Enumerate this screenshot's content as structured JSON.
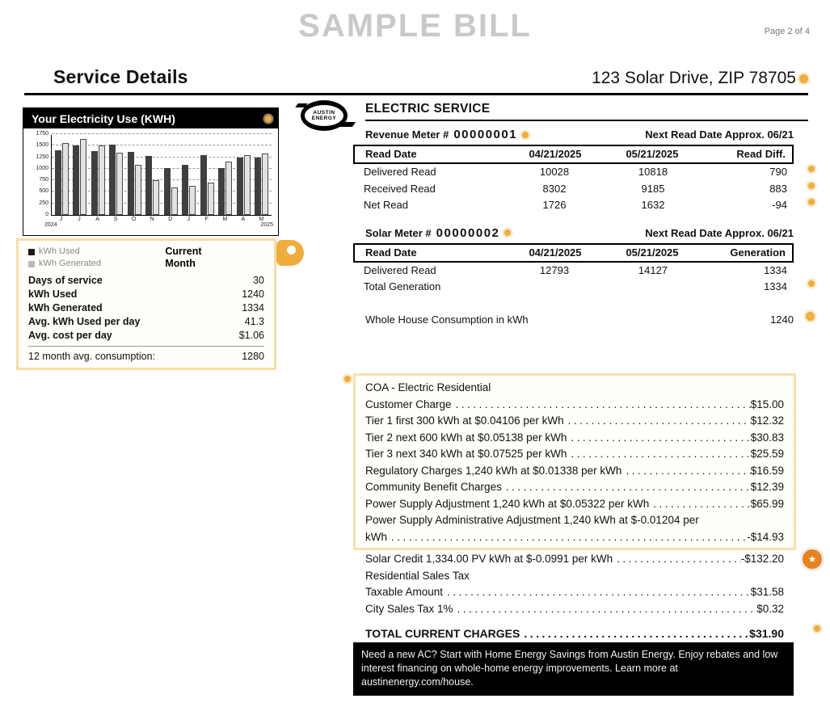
{
  "page": {
    "watermark": "SAMPLE BILL",
    "page_indicator": "Page 2 of 4"
  },
  "header": {
    "title": "Service Details",
    "address": "123 Solar Drive, ZIP 78705"
  },
  "logo": {
    "line1": "AUSTIN",
    "line2": "ENERGY"
  },
  "chart_data": {
    "type": "bar",
    "title": "Your Electricity Use (KWH)",
    "categories": [
      "J",
      "J",
      "A",
      "S",
      "O",
      "N",
      "D",
      "J",
      "F",
      "M",
      "A",
      "M"
    ],
    "series": [
      {
        "name": "kWh Used",
        "color": "#3f3f3f",
        "values": [
          1400,
          1500,
          1380,
          1520,
          1360,
          1270,
          1020,
          1090,
          1290,
          1010,
          1250,
          1240
        ]
      },
      {
        "name": "kWh Generated",
        "color": "#e2e2e2",
        "values": [
          1560,
          1650,
          1500,
          1340,
          1090,
          760,
          590,
          630,
          700,
          1160,
          1290,
          1334
        ]
      }
    ],
    "ylim": [
      0,
      1750
    ],
    "yticks": [
      0,
      250,
      500,
      750,
      1000,
      1250,
      1500,
      1750
    ],
    "x_start_year": "2024",
    "x_end_year": "2025",
    "grid": "dashed horizontal",
    "legend_position": "below-left"
  },
  "usage_summary": {
    "legend": [
      {
        "label": "kWh Used",
        "color": "#1a1a1a"
      },
      {
        "label": "kWh Generated",
        "color": "#b9b9b9"
      }
    ],
    "column_header_line1": "Current",
    "column_header_line2": "Month",
    "rows": [
      {
        "label": "Days of service",
        "value": "30"
      },
      {
        "label": "kWh Used",
        "value": "1240"
      },
      {
        "label": "kWh Generated",
        "value": "1334"
      },
      {
        "label": "Avg. kWh Used per day",
        "value": "41.3"
      },
      {
        "label": "Avg. cost per day",
        "value": "$1.06"
      }
    ],
    "footer": {
      "label": "12 month avg. consumption:",
      "value": "1280"
    }
  },
  "electric_service": {
    "title": "ELECTRIC SERVICE",
    "meters": [
      {
        "name_label": "Revenue Meter #",
        "number": "00000001",
        "next_read": "Next Read Date Approx. 06/21",
        "header": [
          "Read Date",
          "04/21/2025",
          "05/21/2025",
          "Read Diff."
        ],
        "rows": [
          {
            "cells": [
              "Delivered Read",
              "10028",
              "10818",
              "790"
            ],
            "marker": true
          },
          {
            "cells": [
              "Received Read",
              "8302",
              "9185",
              "883"
            ],
            "marker": true
          },
          {
            "cells": [
              "Net Read",
              "1726",
              "1632",
              "-94"
            ],
            "marker": true
          }
        ]
      },
      {
        "name_label": "Solar Meter #",
        "number": "00000002",
        "next_read": "Next Read Date Approx. 06/21",
        "header": [
          "Read Date",
          "04/21/2025",
          "05/21/2025",
          "Generation"
        ],
        "rows": [
          {
            "cells": [
              "Delivered Read",
              "12793",
              "14127",
              "1334"
            ],
            "marker": false
          },
          {
            "cells": [
              "Total Generation",
              "",
              "",
              "1334"
            ],
            "marker": true
          }
        ]
      }
    ],
    "whole_house": {
      "label": "Whole House Consumption in kWh",
      "value": "1240"
    }
  },
  "charges": {
    "highlight_items": [
      {
        "label": "COA - Electric Residential",
        "amount": "",
        "dots": false
      },
      {
        "label": "Customer Charge",
        "amount": "$15.00",
        "dots": true
      },
      {
        "label": "Tier 1 first 300 kWh at $0.04106 per kWh",
        "amount": "$12.32",
        "dots": true
      },
      {
        "label": "Tier 2 next 600 kWh at $0.05138 per kWh",
        "amount": "$30.83",
        "dots": true
      },
      {
        "label": "Tier 3 next 340 kWh at $0.07525 per kWh",
        "amount": "$25.59",
        "dots": true
      },
      {
        "label": "Regulatory Charges 1,240 kWh at $0.01338 per kWh",
        "amount": "$16.59",
        "dots": true
      },
      {
        "label": "Community Benefit Charges",
        "amount": "$12.39",
        "dots": true
      },
      {
        "label": "Power Supply Adjustment 1,240 kWh at $0.05322 per kWh",
        "amount": "$65.99",
        "dots": true
      },
      {
        "label": "Power Supply Administrative Adjustment 1,240 kWh at $-0.01204 per",
        "amount": "",
        "dots": false
      },
      {
        "label": "kWh",
        "amount": "-$14.93",
        "dots": true
      }
    ],
    "items": [
      {
        "label": "Solar Credit 1,334.00 PV kWh at $-0.0991 per kWh",
        "amount": "-$132.20",
        "dots": true,
        "star": true
      },
      {
        "label": "Residential Sales Tax",
        "amount": "",
        "dots": false
      },
      {
        "label": "Taxable Amount",
        "amount": "$31.58",
        "dots": true
      },
      {
        "label": "City Sales Tax 1%",
        "amount": "$0.32",
        "dots": true
      }
    ],
    "total": {
      "label": "TOTAL CURRENT CHARGES",
      "amount": "$31.90"
    }
  },
  "promo": {
    "text": "Need a new AC? Start with Home Energy Savings from Austin Energy. Enjoy rebates and low interest financing on whole-home energy improvements. Learn more at austinenergy.com/house."
  },
  "colors": {
    "marker_yellow": "#EFAD3B",
    "badge_orange": "#E8821E",
    "highlight_border": "#F8DFAE",
    "watermark_gray": "#c9c9c9"
  }
}
